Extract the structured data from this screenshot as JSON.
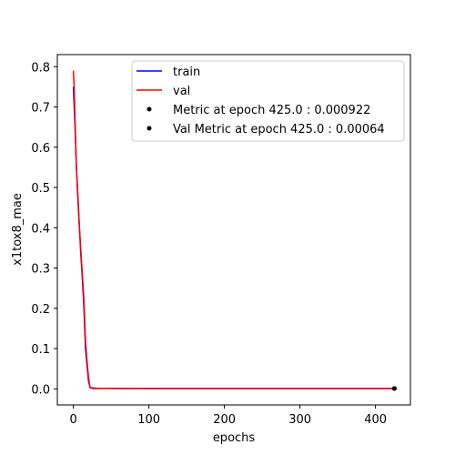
{
  "chart_data": {
    "type": "line",
    "title": "",
    "xlabel": "epochs",
    "ylabel": "x1tox8_mae",
    "xlim": [
      -21.25,
      446.25
    ],
    "ylim": [
      -0.04,
      0.83
    ],
    "xticks": [
      0,
      100,
      200,
      300,
      400
    ],
    "yticks": [
      0.0,
      0.1,
      0.2,
      0.3,
      0.4,
      0.5,
      0.6,
      0.7,
      0.8
    ],
    "ytick_labels": [
      "0.0",
      "0.1",
      "0.2",
      "0.3",
      "0.4",
      "0.5",
      "0.6",
      "0.7",
      "0.8"
    ],
    "legend_position": "upper-right",
    "series": [
      {
        "name": "train",
        "color": "#0000ff",
        "x": [
          0,
          2,
          4,
          6,
          8,
          10,
          12,
          14,
          16,
          18,
          20,
          22,
          25,
          30,
          40,
          60,
          80,
          100,
          150,
          200,
          250,
          300,
          350,
          400,
          425
        ],
        "values": [
          0.75,
          0.66,
          0.55,
          0.47,
          0.4,
          0.33,
          0.27,
          0.2,
          0.1,
          0.06,
          0.02,
          0.004,
          0.002,
          0.0015,
          0.0012,
          0.0011,
          0.001,
          0.001,
          0.0009,
          0.0009,
          0.0009,
          0.0009,
          0.0009,
          0.0009,
          0.000922
        ]
      },
      {
        "name": "val",
        "color": "#ff0000",
        "x": [
          0,
          1,
          2,
          4,
          6,
          8,
          10,
          12,
          14,
          16,
          18,
          20,
          22,
          25,
          30,
          40,
          60,
          80,
          100,
          150,
          200,
          250,
          300,
          350,
          400,
          425
        ],
        "values": [
          0.79,
          0.75,
          0.68,
          0.55,
          0.48,
          0.4,
          0.34,
          0.28,
          0.22,
          0.12,
          0.07,
          0.03,
          0.003,
          0.001,
          0.0008,
          0.0012,
          0.0006,
          0.0009,
          0.0007,
          0.0008,
          0.0006,
          0.0007,
          0.0006,
          0.0007,
          0.0006,
          0.00064
        ]
      }
    ],
    "points": [
      {
        "name": "Metric at epoch 425.0 : 0.000922",
        "x": 425,
        "y": 0.000922,
        "color": "#000000"
      },
      {
        "name": "Val Metric at epoch 425.0 : 0.00064",
        "x": 425,
        "y": 0.00064,
        "color": "#000000"
      }
    ]
  }
}
